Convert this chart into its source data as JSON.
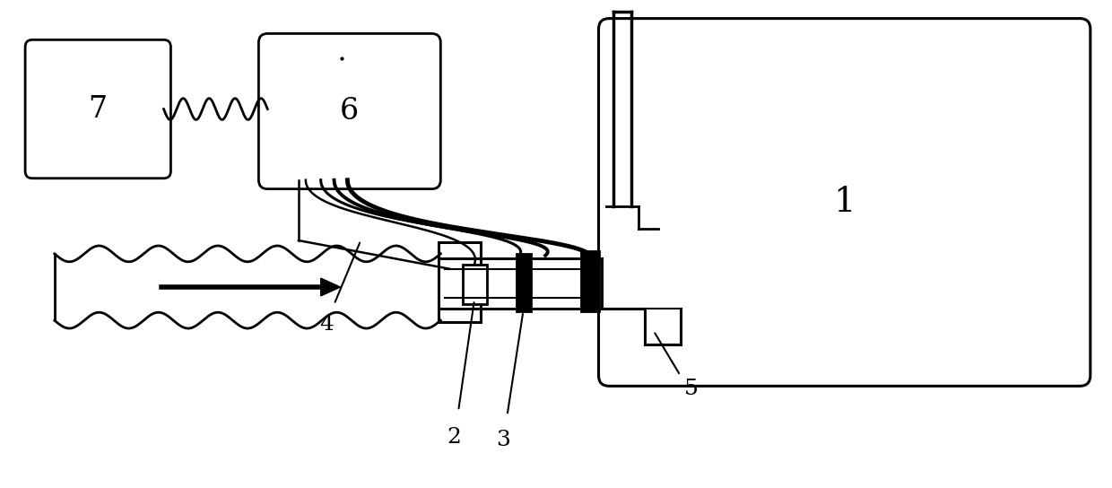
{
  "bg_color": "#ffffff",
  "line_color": "#000000",
  "fig_width": 12.4,
  "fig_height": 5.44
}
